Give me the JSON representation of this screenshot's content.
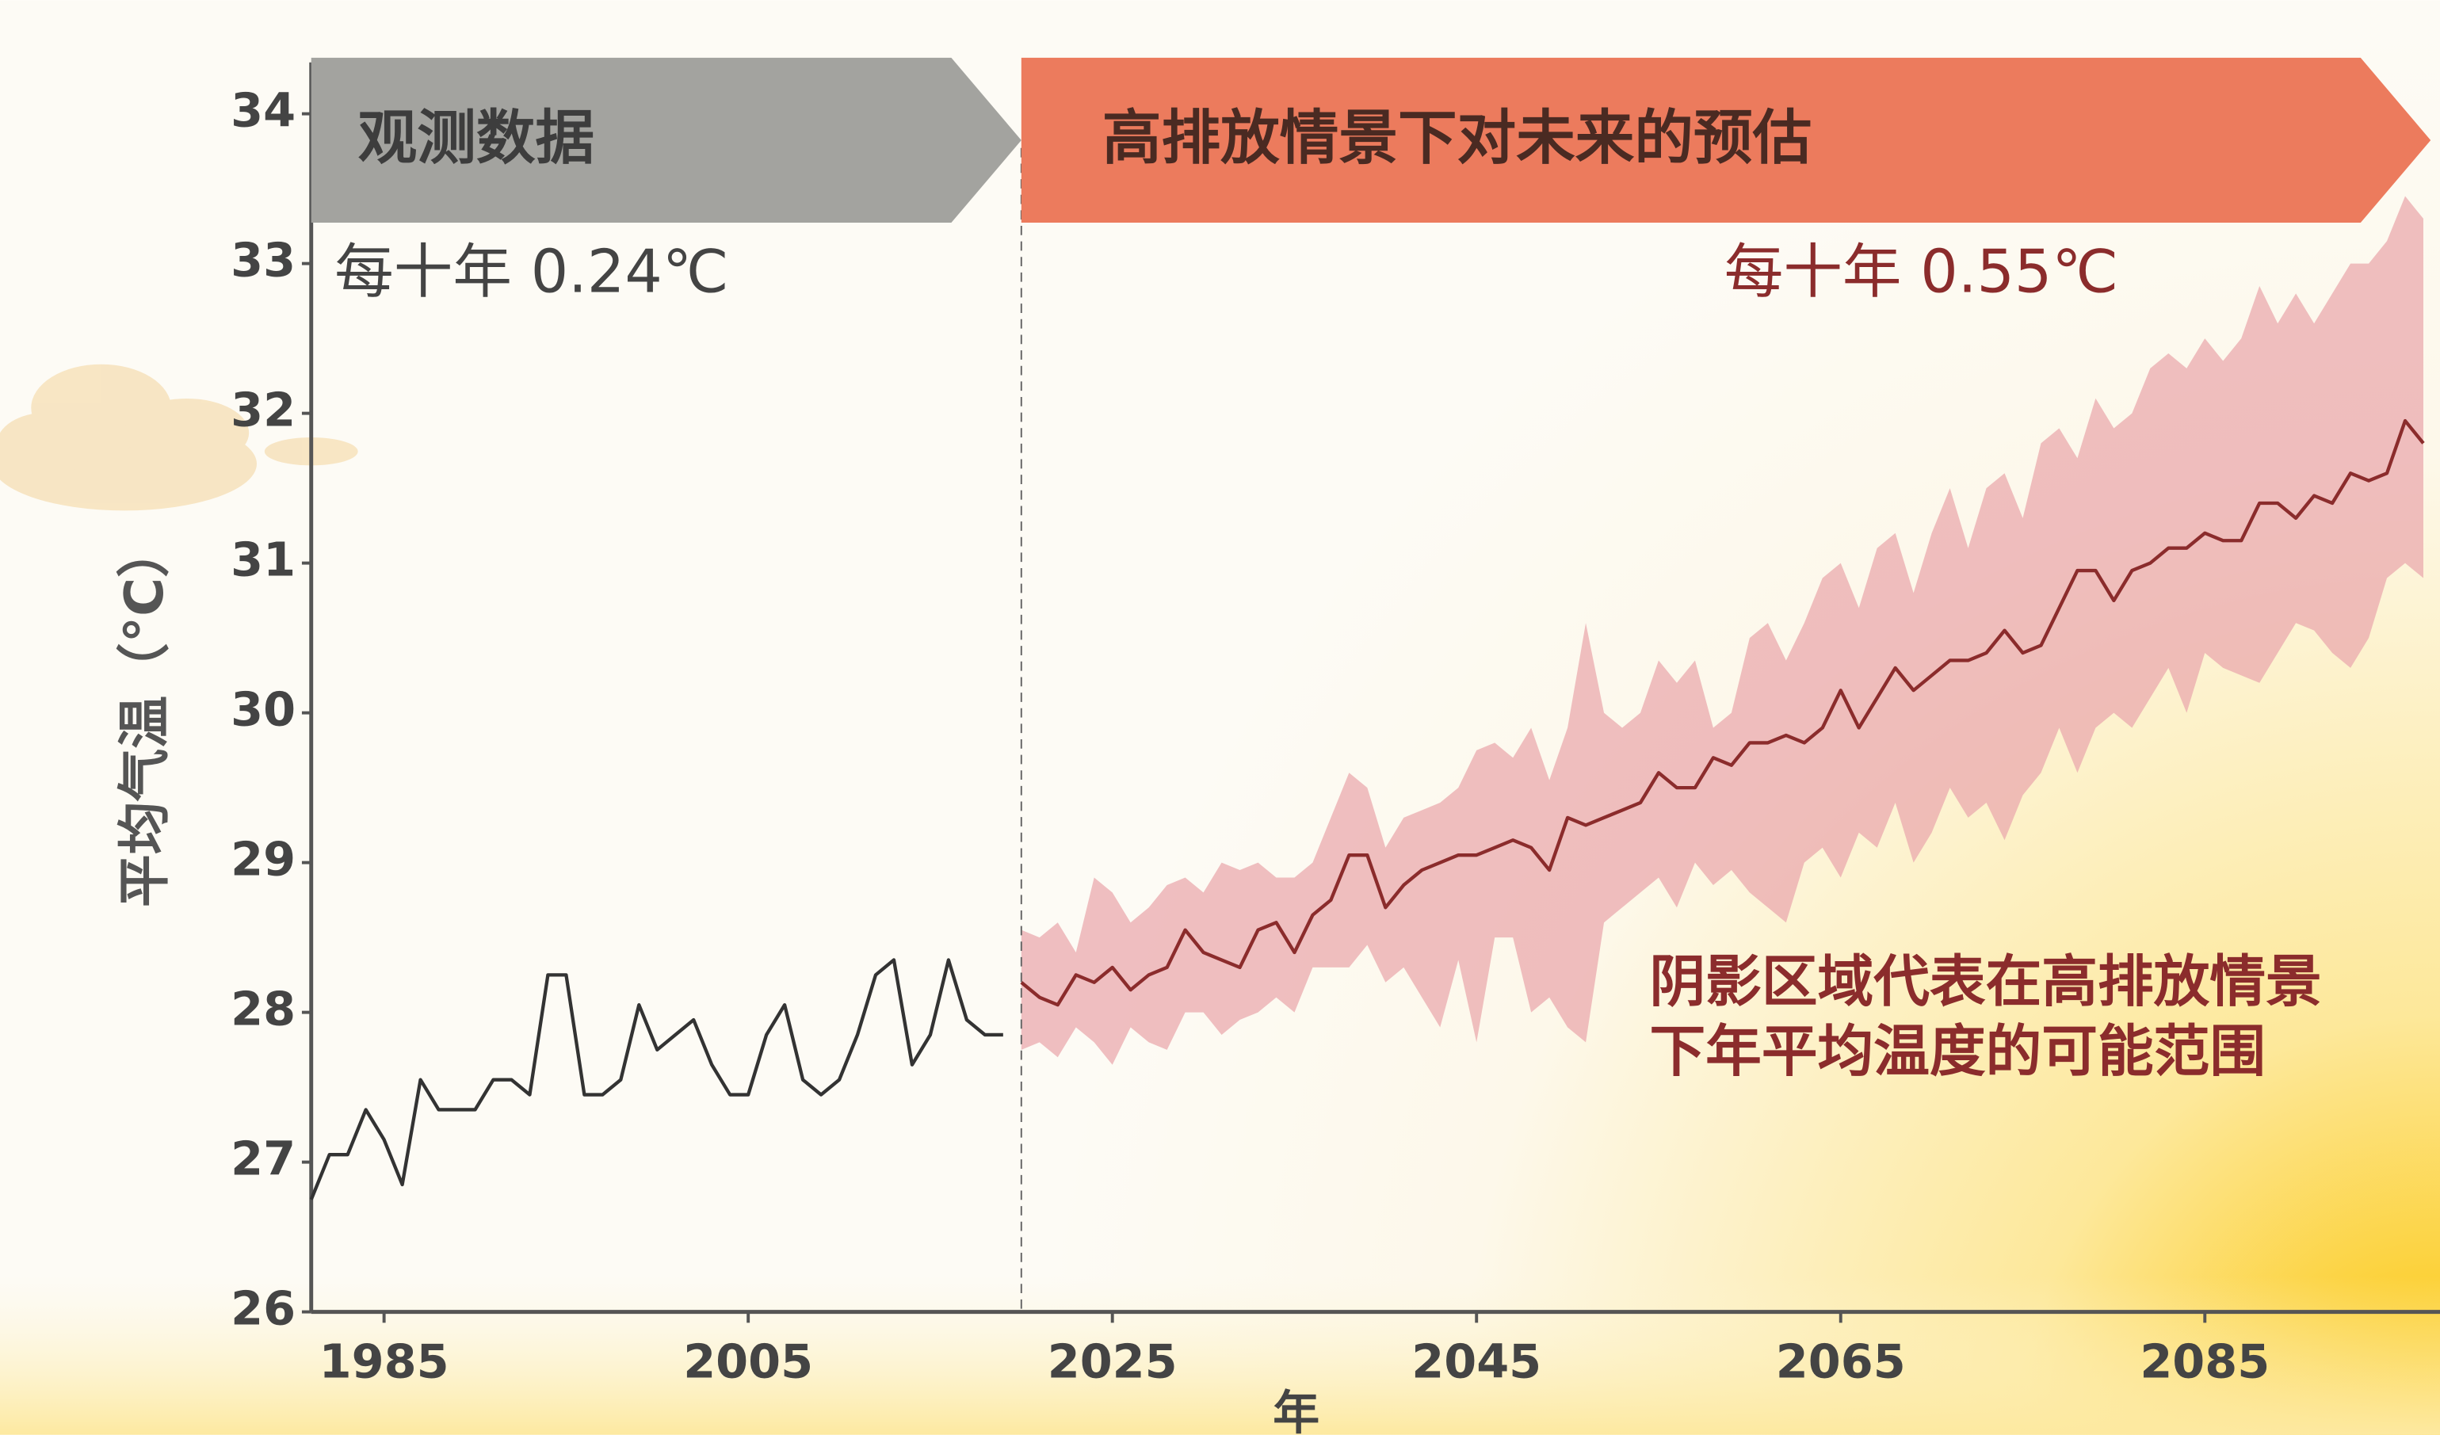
{
  "chart_data": {
    "type": "line",
    "y_label": "平均气温（°C）",
    "x_label": "年",
    "xlim": [
      1981,
      2098
    ],
    "ylim": [
      26,
      34
    ],
    "xticks": [
      1985,
      2005,
      2025,
      2045,
      2065,
      2085
    ],
    "yticks": [
      26,
      27,
      28,
      29,
      30,
      31,
      32,
      33,
      34
    ],
    "grid": false,
    "annotations": [
      "每十年 0.24℃",
      "每十年 0.55℃"
    ],
    "note": [
      "阴影区域代表在高排放情景",
      "下年平均温度的可能范围"
    ],
    "series": [
      {
        "name": "观测数据",
        "color": "#333333",
        "banner_color": "#a3a39f",
        "x": [
          1981,
          1982,
          1983,
          1984,
          1985,
          1986,
          1987,
          1988,
          1989,
          1990,
          1991,
          1992,
          1993,
          1994,
          1995,
          1996,
          1997,
          1998,
          1999,
          2000,
          2001,
          2002,
          2003,
          2004,
          2005,
          2006,
          2007,
          2008,
          2009,
          2010,
          2011,
          2012,
          2013,
          2014,
          2015,
          2016,
          2017,
          2018,
          2019
        ],
        "values": [
          26.75,
          27.05,
          27.05,
          27.35,
          27.15,
          26.85,
          27.55,
          27.35,
          27.35,
          27.35,
          27.55,
          27.55,
          27.45,
          28.25,
          28.25,
          27.45,
          27.45,
          27.55,
          28.05,
          27.75,
          27.85,
          27.95,
          27.65,
          27.45,
          27.45,
          27.85,
          28.05,
          27.55,
          27.45,
          27.55,
          27.85,
          28.25,
          28.35,
          27.65,
          27.85,
          28.35,
          27.95,
          27.85,
          27.85
        ]
      },
      {
        "name": "高排放情景下对未来的预估",
        "color": "#8b2c2c",
        "banner_color": "#ec7b5d",
        "band_color": "#e9a9ae",
        "x": [
          2020,
          2021,
          2022,
          2023,
          2024,
          2025,
          2026,
          2027,
          2028,
          2029,
          2030,
          2031,
          2032,
          2033,
          2034,
          2035,
          2036,
          2037,
          2038,
          2039,
          2040,
          2041,
          2042,
          2043,
          2044,
          2045,
          2046,
          2047,
          2048,
          2049,
          2050,
          2051,
          2052,
          2053,
          2054,
          2055,
          2056,
          2057,
          2058,
          2059,
          2060,
          2061,
          2062,
          2063,
          2064,
          2065,
          2066,
          2067,
          2068,
          2069,
          2070,
          2071,
          2072,
          2073,
          2074,
          2075,
          2076,
          2077,
          2078,
          2079,
          2080,
          2081,
          2082,
          2083,
          2084,
          2085,
          2086,
          2087,
          2088,
          2089,
          2090,
          2091,
          2092,
          2093,
          2094,
          2095,
          2096,
          2097
        ],
        "values": [
          28.2,
          28.1,
          28.05,
          28.25,
          28.2,
          28.3,
          28.15,
          28.25,
          28.3,
          28.55,
          28.4,
          28.35,
          28.3,
          28.55,
          28.6,
          28.4,
          28.65,
          28.75,
          29.05,
          29.05,
          28.7,
          28.85,
          28.95,
          29.0,
          29.05,
          29.05,
          29.1,
          29.15,
          29.1,
          28.95,
          29.3,
          29.25,
          29.3,
          29.35,
          29.4,
          29.6,
          29.5,
          29.5,
          29.7,
          29.65,
          29.8,
          29.8,
          29.85,
          29.8,
          29.9,
          30.15,
          29.9,
          30.1,
          30.3,
          30.15,
          30.25,
          30.35,
          30.35,
          30.4,
          30.55,
          30.4,
          30.45,
          30.7,
          30.95,
          30.95,
          30.75,
          30.95,
          31.0,
          31.1,
          31.1,
          31.2,
          31.15,
          31.15,
          31.4,
          31.4,
          31.3,
          31.45,
          31.4,
          31.6,
          31.55,
          31.6,
          31.95,
          31.8
        ],
        "high": [
          28.55,
          28.5,
          28.6,
          28.4,
          28.9,
          28.8,
          28.6,
          28.7,
          28.85,
          28.9,
          28.8,
          29.0,
          28.95,
          29.0,
          28.9,
          28.9,
          29.0,
          29.3,
          29.6,
          29.5,
          29.1,
          29.3,
          29.35,
          29.4,
          29.5,
          29.75,
          29.8,
          29.7,
          29.9,
          29.55,
          29.9,
          30.6,
          30.0,
          29.9,
          30.0,
          30.35,
          30.2,
          30.35,
          29.9,
          30.0,
          30.5,
          30.6,
          30.35,
          30.6,
          30.9,
          31.0,
          30.7,
          31.1,
          31.2,
          30.8,
          31.2,
          31.5,
          31.1,
          31.5,
          31.6,
          31.3,
          31.8,
          31.9,
          31.7,
          32.1,
          31.9,
          32.0,
          32.3,
          32.4,
          32.3,
          32.5,
          32.35,
          32.5,
          32.85,
          32.6,
          32.8,
          32.6,
          32.8,
          33.0,
          33.0,
          33.15,
          33.45,
          33.3
        ],
        "low": [
          27.75,
          27.8,
          27.7,
          27.9,
          27.8,
          27.65,
          27.9,
          27.8,
          27.75,
          28.0,
          28.0,
          27.85,
          27.95,
          28.0,
          28.1,
          28.0,
          28.3,
          28.3,
          28.3,
          28.45,
          28.2,
          28.3,
          28.1,
          27.9,
          28.35,
          27.8,
          28.5,
          28.5,
          28.0,
          28.1,
          27.9,
          27.8,
          28.6,
          28.7,
          28.8,
          28.9,
          28.7,
          29.0,
          28.85,
          28.95,
          28.8,
          28.7,
          28.6,
          29.0,
          29.1,
          28.9,
          29.2,
          29.1,
          29.4,
          29.0,
          29.2,
          29.5,
          29.3,
          29.4,
          29.15,
          29.45,
          29.6,
          29.9,
          29.6,
          29.9,
          30.0,
          29.9,
          30.1,
          30.3,
          30.0,
          30.4,
          30.3,
          30.25,
          30.2,
          30.4,
          30.6,
          30.55,
          30.4,
          30.3,
          30.5,
          30.9,
          31.0,
          30.9
        ]
      }
    ]
  }
}
